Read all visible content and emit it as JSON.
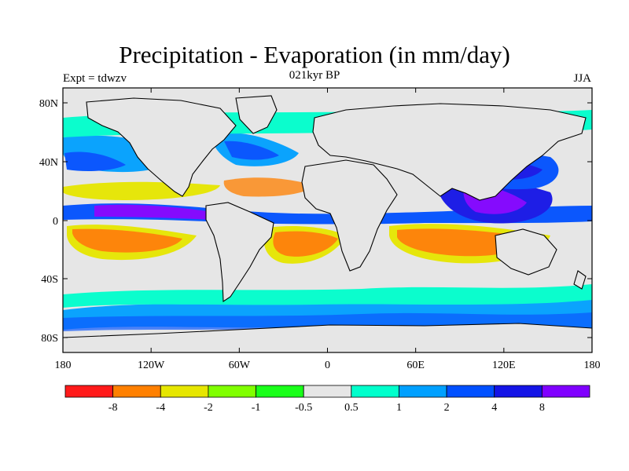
{
  "title": "Precipitation - Evaporation (in mm/day)",
  "experiment": "Expt = tdwzv",
  "period": "021kyr BP",
  "season": "JJA",
  "axes": {
    "lat_ticks": [
      "80N",
      "40N",
      "0",
      "40S",
      "80S"
    ],
    "lon_ticks": [
      "180",
      "120W",
      "60W",
      "0",
      "60E",
      "120E",
      "180"
    ]
  },
  "colorbar": {
    "colors": [
      "#ff1a1a",
      "#ff8000",
      "#e6e600",
      "#80ff00",
      "#1aff1a",
      "#e6e6e6",
      "#00ffcc",
      "#00a0ff",
      "#0050ff",
      "#1414e6",
      "#8000ff"
    ],
    "labels": [
      "-8",
      "-4",
      "-2",
      "-1",
      "-0.5",
      "0.5",
      "1",
      "2",
      "4",
      "8"
    ]
  },
  "colors": {
    "background": "#e6e6e6",
    "outline": "#000000"
  }
}
